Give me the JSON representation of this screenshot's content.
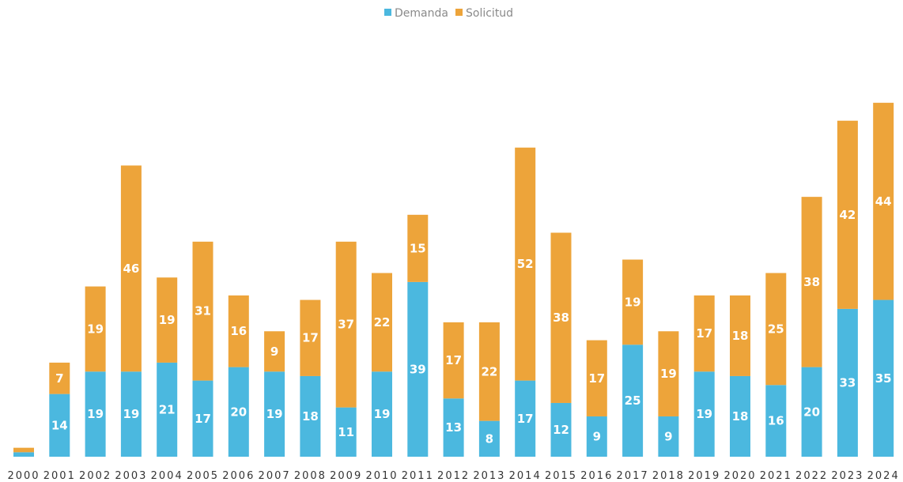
{
  "chart_data": {
    "type": "bar",
    "stacked": true,
    "legend_position": "top-center",
    "grid": false,
    "categories": [
      "2000",
      "2001",
      "2002",
      "2003",
      "2004",
      "2005",
      "2006",
      "2007",
      "2008",
      "2009",
      "2010",
      "2011",
      "2012",
      "2013",
      "2014",
      "2015",
      "2016",
      "2017",
      "2018",
      "2019",
      "2020",
      "2021",
      "2022",
      "2023",
      "2024"
    ],
    "series": [
      {
        "name": "Demanda",
        "color": "#4BB8DF",
        "values": [
          1,
          14,
          19,
          19,
          21,
          17,
          20,
          19,
          18,
          11,
          19,
          39,
          13,
          8,
          17,
          12,
          9,
          25,
          9,
          19,
          18,
          16,
          20,
          33,
          35
        ],
        "labels": [
          "1",
          "14",
          "19",
          "19",
          "21",
          "17",
          "20",
          "19",
          "18",
          "11",
          "19",
          "39",
          "13",
          "8",
          "17",
          "12",
          "9",
          "25",
          "9",
          "19",
          "18",
          "16",
          "20",
          "33",
          "35"
        ]
      },
      {
        "name": "Solicitud",
        "color": "#EDA43A",
        "values": [
          1,
          7,
          19,
          46,
          19,
          31,
          16,
          9,
          17,
          37,
          22,
          15,
          17,
          22,
          52,
          38,
          17,
          19,
          19,
          17,
          18,
          25,
          38,
          42,
          44
        ],
        "labels": [
          "1",
          "7",
          "19",
          "46",
          "19",
          "31",
          "16",
          "9",
          "17",
          "37",
          "22",
          "15",
          "17",
          "22",
          "52",
          "38",
          "17",
          "19",
          "19",
          "17",
          "18",
          "25",
          "38",
          "42",
          "44"
        ]
      }
    ],
    "title": "",
    "xlabel": "",
    "ylabel": "",
    "ylim": [
      0,
      80
    ]
  }
}
